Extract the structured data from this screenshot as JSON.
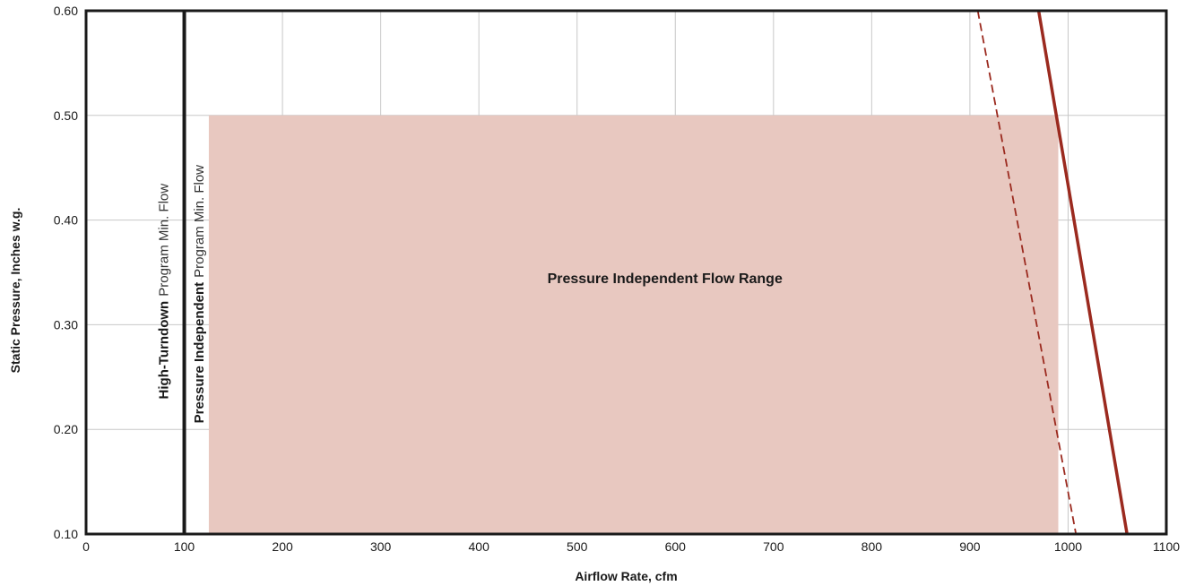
{
  "chart_data": {
    "type": "line",
    "xlabel": "Airflow Rate, cfm",
    "ylabel": "Static Pressure, Inches w.g.",
    "xlim": [
      0,
      1100
    ],
    "ylim": [
      0.1,
      0.6
    ],
    "x_ticks": [
      0,
      100,
      200,
      300,
      400,
      500,
      600,
      700,
      800,
      900,
      1000,
      1100
    ],
    "x_tick_labels": [
      "0",
      "100",
      "200",
      "300",
      "400",
      "500",
      "600",
      "700",
      "800",
      "900",
      "1000",
      "1100"
    ],
    "y_ticks": [
      0.1,
      0.2,
      0.3,
      0.4,
      0.5,
      0.6
    ],
    "y_tick_labels": [
      "0.10",
      "0.20",
      "0.30",
      "0.40",
      "0.50",
      "0.60"
    ],
    "grid": true,
    "region": {
      "label": "Pressure Independent Flow Range",
      "x": [
        125,
        990
      ],
      "y": [
        0.1,
        0.5
      ],
      "color": "#e8c8c0"
    },
    "vertical_lines": [
      {
        "x": 100,
        "label_bold": "High-Turndown",
        "label_light": "Program Min. Flow",
        "color": "#1a1a1a"
      },
      {
        "x": 125,
        "label_bold": "Pressure Independent",
        "label_light": "Program Min. Flow",
        "color": "#1a1a1a"
      }
    ],
    "series": [
      {
        "style": "dashed",
        "color": "#9b2a1f",
        "x": [
          908,
          1008
        ],
        "y": [
          0.6,
          0.1
        ]
      },
      {
        "style": "solid",
        "color": "#9b2a1f",
        "x": [
          970,
          1060
        ],
        "y": [
          0.6,
          0.1
        ]
      }
    ]
  }
}
